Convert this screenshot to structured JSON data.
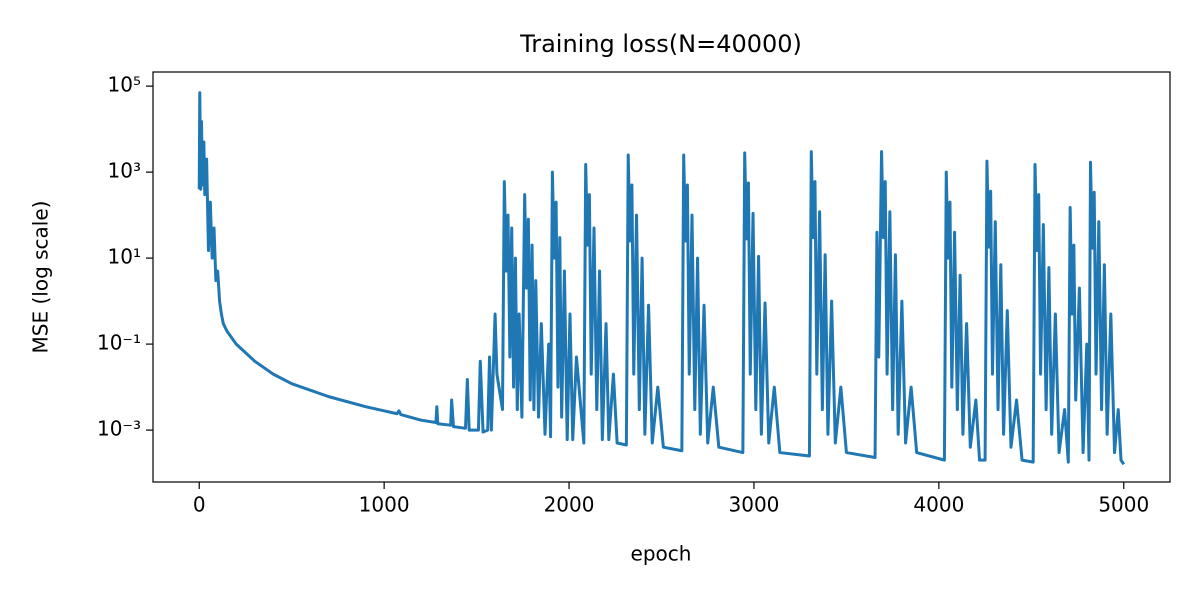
{
  "chart_data": {
    "type": "line",
    "title": "Training loss(N=40000)",
    "xlabel": "epoch",
    "ylabel": "MSE (log scale)",
    "yscale": "log",
    "xlim": [
      -250,
      5250
    ],
    "xticks": [
      0,
      1000,
      2000,
      3000,
      4000,
      5000
    ],
    "ylim": [
      6.2e-05,
      213000
    ],
    "yticks": [
      {
        "value": 0.001,
        "label": "10⁻³"
      },
      {
        "value": 0.1,
        "label": "10⁻¹"
      },
      {
        "value": 10,
        "label": "10¹"
      },
      {
        "value": 1000,
        "label": "10³"
      },
      {
        "value": 100000,
        "label": "10⁵"
      }
    ],
    "x": [
      0,
      3,
      8,
      12,
      18,
      25,
      30,
      40,
      50,
      60,
      70,
      80,
      90,
      100,
      110,
      120,
      130,
      150,
      200,
      300,
      400,
      500,
      700,
      900,
      1070,
      1080,
      1090,
      1200,
      1280,
      1285,
      1290,
      1360,
      1365,
      1375,
      1440,
      1450,
      1460,
      1510,
      1520,
      1535,
      1560,
      1570,
      1580,
      1600,
      1610,
      1640,
      1650,
      1660,
      1670,
      1680,
      1690,
      1700,
      1710,
      1720,
      1730,
      1745,
      1760,
      1770,
      1780,
      1790,
      1800,
      1810,
      1820,
      1835,
      1850,
      1870,
      1890,
      1900,
      1910,
      1920,
      1930,
      1940,
      1950,
      1960,
      1975,
      1990,
      2005,
      2020,
      2040,
      2080,
      2090,
      2100,
      2110,
      2120,
      2135,
      2150,
      2165,
      2180,
      2200,
      2215,
      2240,
      2260,
      2310,
      2320,
      2330,
      2340,
      2350,
      2365,
      2380,
      2395,
      2410,
      2430,
      2450,
      2480,
      2510,
      2610,
      2620,
      2630,
      2640,
      2650,
      2665,
      2680,
      2695,
      2710,
      2730,
      2750,
      2780,
      2810,
      2940,
      2950,
      2960,
      2970,
      2980,
      2995,
      3010,
      3025,
      3040,
      3060,
      3080,
      3110,
      3140,
      3300,
      3310,
      3320,
      3330,
      3340,
      3355,
      3370,
      3385,
      3400,
      3420,
      3440,
      3470,
      3500,
      3655,
      3665,
      3675,
      3690,
      3700,
      3710,
      3720,
      3735,
      3750,
      3765,
      3780,
      3800,
      3820,
      3850,
      3880,
      4030,
      4040,
      4050,
      4060,
      4070,
      4085,
      4100,
      4115,
      4130,
      4150,
      4170,
      4200,
      4220,
      4250,
      4260,
      4270,
      4280,
      4290,
      4305,
      4320,
      4335,
      4350,
      4370,
      4390,
      4420,
      4450,
      4510,
      4520,
      4530,
      4540,
      4550,
      4565,
      4580,
      4595,
      4610,
      4630,
      4650,
      4680,
      4700,
      4710,
      4720,
      4730,
      4740,
      4760,
      4780,
      4800,
      4812,
      4820,
      4830,
      4840,
      4850,
      4865,
      4880,
      4895,
      4910,
      4930,
      4950,
      4970,
      4985,
      5000
    ],
    "series": [
      {
        "color": "#1f77b4",
        "values": [
          400,
          70000,
          400,
          15000,
          500,
          5000,
          300,
          2000,
          15,
          200,
          10,
          50,
          3,
          5,
          1,
          0.5,
          0.3,
          0.2,
          0.1,
          0.04,
          0.02,
          0.012,
          0.006,
          0.0035,
          0.0024,
          0.0028,
          0.0023,
          0.0017,
          0.0015,
          0.0035,
          0.0014,
          0.0013,
          0.005,
          0.0012,
          0.0011,
          0.015,
          0.001,
          0.001,
          0.04,
          0.0009,
          0.001,
          0.05,
          0.001,
          0.5,
          0.02,
          0.003,
          600,
          5,
          100,
          0.05,
          50,
          0.01,
          10,
          0.003,
          0.5,
          0.002,
          300,
          2,
          80,
          0.005,
          20,
          0.003,
          3,
          0.002,
          0.3,
          0.0008,
          0.1,
          0.0007,
          1000,
          10,
          200,
          0.01,
          30,
          0.002,
          5,
          0.0006,
          0.5,
          0.0006,
          0.05,
          0.0005,
          1500,
          20,
          300,
          0.02,
          50,
          0.003,
          5,
          0.0006,
          0.3,
          0.0006,
          0.02,
          0.0005,
          0.00045,
          2500,
          25,
          500,
          0.02,
          100,
          0.003,
          10,
          0.0008,
          0.8,
          0.0005,
          0.01,
          0.0004,
          0.00033,
          2500,
          25,
          500,
          0.02,
          100,
          0.003,
          10,
          0.0008,
          0.8,
          0.0005,
          0.01,
          0.0004,
          0.0003,
          2800,
          28,
          560,
          0.02,
          110,
          0.003,
          11,
          0.0008,
          0.9,
          0.0005,
          0.01,
          0.0003,
          0.00025,
          3000,
          30,
          600,
          0.02,
          120,
          0.003,
          12,
          0.0008,
          1,
          0.0005,
          0.01,
          0.0003,
          0.00023,
          40,
          0.05,
          3000,
          30,
          600,
          0.02,
          120,
          0.003,
          12,
          0.0008,
          1,
          0.0005,
          0.01,
          0.0003,
          0.0002,
          1000,
          10,
          200,
          0.01,
          40,
          0.003,
          4,
          0.0008,
          0.3,
          0.0004,
          0.005,
          0.0002,
          0.0002,
          1800,
          18,
          360,
          0.02,
          70,
          0.003,
          7,
          0.0008,
          0.6,
          0.0004,
          0.005,
          0.0002,
          0.00018,
          1500,
          15,
          300,
          0.02,
          60,
          0.003,
          6,
          0.0008,
          0.5,
          0.0003,
          0.003,
          0.00018,
          150,
          0.5,
          20,
          0.005,
          2,
          0.0003,
          0.1,
          0.0002,
          1700,
          17,
          340,
          0.02,
          70,
          0.003,
          7,
          0.0008,
          0.5,
          0.0003,
          0.003,
          0.0002,
          0.00016
        ]
      }
    ]
  }
}
